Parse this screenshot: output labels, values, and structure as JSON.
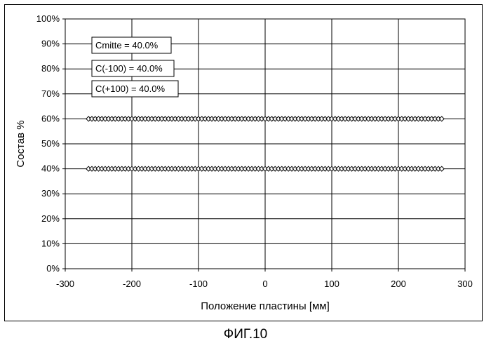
{
  "caption": "ФИГ.10",
  "chart_data": {
    "type": "scatter",
    "title": "",
    "xlabel": "Положение пластины [мм]",
    "ylabel": "Состав %",
    "xlim": [
      -300,
      300
    ],
    "ylim": [
      0,
      100
    ],
    "x_ticks": [
      -300,
      -200,
      -100,
      0,
      100,
      200,
      300
    ],
    "y_ticks": [
      0,
      10,
      20,
      30,
      40,
      50,
      60,
      70,
      80,
      90,
      100
    ],
    "y_tick_suffix": "%",
    "grid": true,
    "legend": "none",
    "marker": "diamond-open",
    "series": [
      {
        "x_start": -265,
        "x_end": 265,
        "x_step": 5,
        "y": 60
      },
      {
        "x_start": -265,
        "x_end": 265,
        "x_step": 5,
        "y": 40
      }
    ],
    "annotations": [
      "Cmitte = 40.0%",
      "C(-100) = 40.0%",
      "C(+100) = 40.0%"
    ]
  }
}
